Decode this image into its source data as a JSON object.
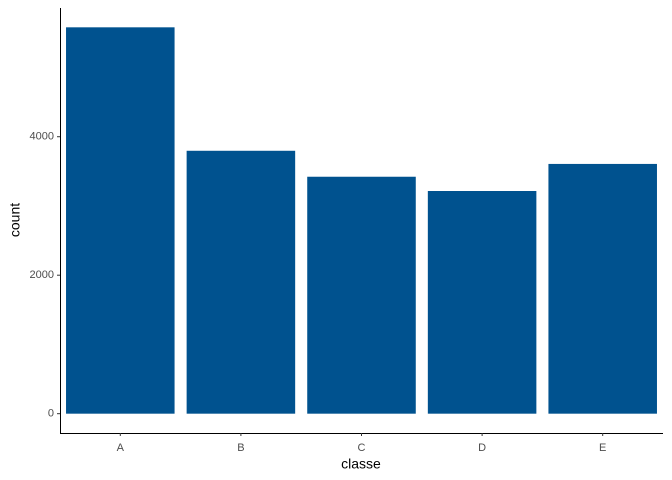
{
  "chart_data": {
    "type": "bar",
    "x_label": "classe",
    "y_label": "count",
    "categories": [
      "A",
      "B",
      "C",
      "D",
      "E"
    ],
    "values": [
      5580,
      3797,
      3422,
      3216,
      3607
    ],
    "color": "#00528f",
    "ylim": [
      -279,
      5859
    ],
    "yticks": [
      0,
      2000,
      4000
    ],
    "grid": false
  }
}
